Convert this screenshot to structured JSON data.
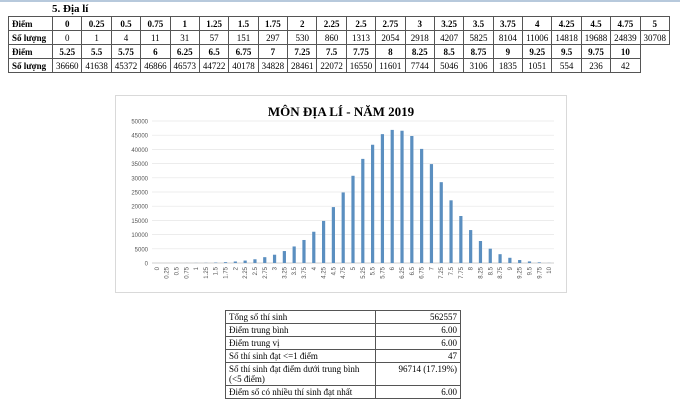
{
  "section_title": "5.  Địa lí",
  "score_table": {
    "row_label_score": "Điểm",
    "row_label_count": "Số lượng",
    "block1_scores": [
      "0",
      "0.25",
      "0.5",
      "0.75",
      "1",
      "1.25",
      "1.5",
      "1.75",
      "2",
      "2.25",
      "2.5",
      "2.75",
      "3",
      "3.25",
      "3.5",
      "3.75",
      "4",
      "4.25",
      "4.5",
      "4.75",
      "5"
    ],
    "block1_counts": [
      "0",
      "1",
      "4",
      "11",
      "31",
      "57",
      "151",
      "297",
      "530",
      "860",
      "1313",
      "2054",
      "2918",
      "4207",
      "5825",
      "8104",
      "11006",
      "14818",
      "19688",
      "24839",
      "30708"
    ],
    "block2_scores": [
      "5.25",
      "5.5",
      "5.75",
      "6",
      "6.25",
      "6.5",
      "6.75",
      "7",
      "7.25",
      "7.5",
      "7.75",
      "8",
      "8.25",
      "8.5",
      "8.75",
      "9",
      "9.25",
      "9.5",
      "9.75",
      "10"
    ],
    "block2_counts": [
      "36660",
      "41638",
      "45372",
      "46866",
      "46573",
      "44722",
      "40178",
      "34828",
      "28461",
      "22072",
      "16550",
      "11601",
      "7744",
      "5046",
      "3106",
      "1835",
      "1051",
      "554",
      "236",
      "42"
    ]
  },
  "chart_data": {
    "type": "bar",
    "title": "MÔN ĐỊA LÍ - NĂM 2019",
    "xlabel": "",
    "ylabel": "",
    "ylim": [
      0,
      50000
    ],
    "yticks": [
      0,
      5000,
      10000,
      15000,
      20000,
      25000,
      30000,
      35000,
      40000,
      45000,
      50000
    ],
    "grid": true,
    "bar_color": "#5b8fc0",
    "categories": [
      "0",
      "0.25",
      "0.5",
      "0.75",
      "1",
      "1.25",
      "1.5",
      "1.75",
      "2",
      "2.25",
      "2.5",
      "2.75",
      "3",
      "3.25",
      "3.5",
      "3.75",
      "4",
      "4.25",
      "4.5",
      "4.75",
      "5",
      "5.25",
      "5.5",
      "5.75",
      "6",
      "6.25",
      "6.5",
      "6.75",
      "7",
      "7.25",
      "7.5",
      "7.75",
      "8",
      "8.25",
      "8.5",
      "8.75",
      "9",
      "9.25",
      "9.5",
      "9.75",
      "10"
    ],
    "values": [
      0,
      1,
      4,
      11,
      31,
      57,
      151,
      297,
      530,
      860,
      1313,
      2054,
      2918,
      4207,
      5825,
      8104,
      11006,
      14818,
      19688,
      24839,
      30708,
      36660,
      41638,
      45372,
      46866,
      46573,
      44722,
      40178,
      34828,
      28461,
      22072,
      16550,
      11601,
      7744,
      5046,
      3106,
      1835,
      1051,
      554,
      236,
      42
    ]
  },
  "stats": [
    {
      "label": "Tổng số thí sinh",
      "value": "562557"
    },
    {
      "label": "Điểm trung bình",
      "value": "6.00"
    },
    {
      "label": "Điểm trung vị",
      "value": "6.00"
    },
    {
      "label": "Số thí sinh đạt <=1 điểm",
      "value": "47"
    },
    {
      "label": "Số thí sinh đạt điểm dưới trung bình (<5 điểm)",
      "value": "96714 (17.19%)"
    },
    {
      "label": "Điểm số có nhiều thí sinh đạt nhất",
      "value": "6.00"
    }
  ]
}
